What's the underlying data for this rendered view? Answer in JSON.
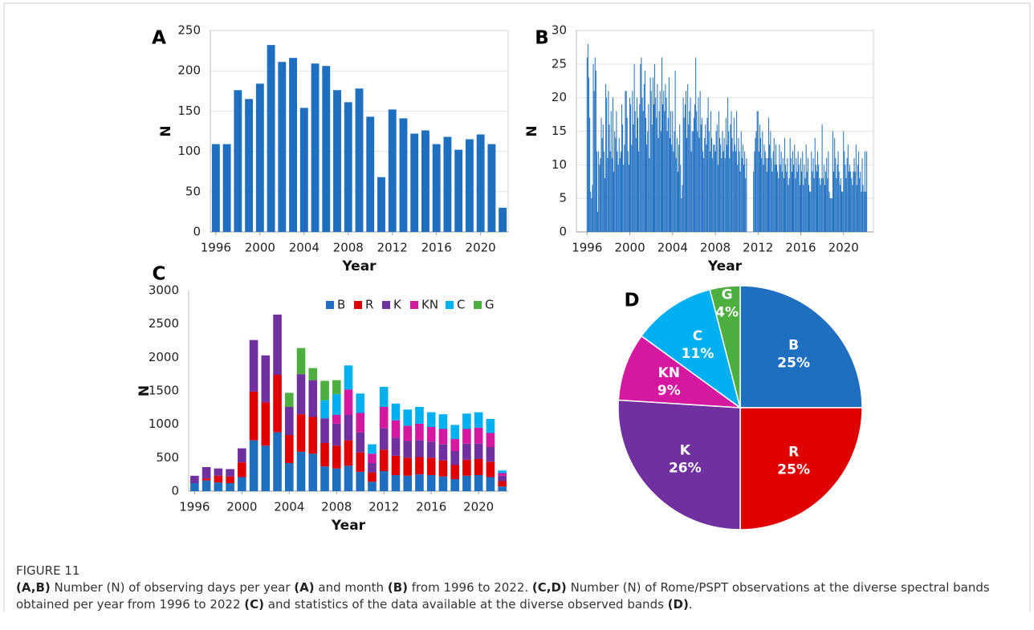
{
  "chart_data": [
    {
      "type": "bar",
      "panel": "A",
      "xlabel": "Year",
      "ylabel": "N",
      "x": [
        1996,
        1997,
        1998,
        1999,
        2000,
        2001,
        2002,
        2003,
        2004,
        2005,
        2006,
        2007,
        2008,
        2009,
        2010,
        2011,
        2012,
        2013,
        2014,
        2015,
        2016,
        2017,
        2018,
        2019,
        2020,
        2021,
        2022
      ],
      "values": [
        109,
        109,
        176,
        165,
        184,
        232,
        211,
        216,
        154,
        209,
        206,
        176,
        161,
        178,
        143,
        68,
        152,
        141,
        122,
        126,
        109,
        118,
        102,
        115,
        121,
        109,
        30
      ],
      "color": "#1f6fc1",
      "xlim": [
        1995.5,
        2022.5
      ],
      "xticks": [
        1996,
        2000,
        2004,
        2008,
        2012,
        2016,
        2020
      ],
      "ylim": [
        0,
        250
      ],
      "yticks": [
        0,
        50,
        100,
        150,
        200,
        250
      ],
      "grid": true
    },
    {
      "type": "bar",
      "panel": "B",
      "xlabel": "Year",
      "ylabel": "N",
      "x": [
        1996,
        1996.08,
        1996.17,
        1996.25,
        1996.33,
        1996.42,
        1996.5,
        1996.58,
        1996.67,
        1996.75,
        1996.83,
        1996.92,
        1997,
        1997.08,
        1997.17,
        1997.25,
        1997.33,
        1997.42,
        1997.5,
        1997.58,
        1997.67,
        1997.75,
        1997.83,
        1997.92,
        1998,
        1998.08,
        1998.17,
        1998.25,
        1998.33,
        1998.42,
        1998.5,
        1998.58,
        1998.67,
        1998.75,
        1998.83,
        1998.92,
        1999,
        1999.08,
        1999.17,
        1999.25,
        1999.33,
        1999.42,
        1999.5,
        1999.58,
        1999.67,
        1999.75,
        1999.83,
        1999.92,
        2000,
        2000.08,
        2000.17,
        2000.25,
        2000.33,
        2000.42,
        2000.5,
        2000.58,
        2000.67,
        2000.75,
        2000.83,
        2000.92,
        2001,
        2001.08,
        2001.17,
        2001.25,
        2001.33,
        2001.42,
        2001.5,
        2001.58,
        2001.67,
        2001.75,
        2001.83,
        2001.92,
        2002,
        2002.08,
        2002.17,
        2002.25,
        2002.33,
        2002.42,
        2002.5,
        2002.58,
        2002.67,
        2002.75,
        2002.83,
        2002.92,
        2003,
        2003.08,
        2003.17,
        2003.25,
        2003.33,
        2003.42,
        2003.5,
        2003.58,
        2003.67,
        2003.75,
        2003.83,
        2003.92,
        2004,
        2004.08,
        2004.17,
        2004.25,
        2004.33,
        2004.42,
        2004.5,
        2004.58,
        2004.67,
        2004.75,
        2004.83,
        2004.92,
        2005,
        2005.08,
        2005.17,
        2005.25,
        2005.33,
        2005.42,
        2005.5,
        2005.58,
        2005.67,
        2005.75,
        2005.83,
        2005.92,
        2006,
        2006.08,
        2006.17,
        2006.25,
        2006.33,
        2006.42,
        2006.5,
        2006.58,
        2006.67,
        2006.75,
        2006.83,
        2006.92,
        2007,
        2007.08,
        2007.17,
        2007.25,
        2007.33,
        2007.42,
        2007.5,
        2007.58,
        2007.67,
        2007.75,
        2007.83,
        2007.92,
        2008,
        2008.08,
        2008.17,
        2008.25,
        2008.33,
        2008.42,
        2008.5,
        2008.58,
        2008.67,
        2008.75,
        2008.83,
        2008.92,
        2009,
        2009.08,
        2009.17,
        2009.25,
        2009.33,
        2009.42,
        2009.5,
        2009.58,
        2009.67,
        2009.75,
        2009.83,
        2009.92,
        2010,
        2010.08,
        2010.17,
        2010.25,
        2010.33,
        2010.42,
        2010.5,
        2010.58,
        2010.67,
        2010.75,
        2010.83,
        2010.92,
        2011,
        2011.08,
        2011.17,
        2011.25,
        2011.33,
        2011.42,
        2011.5,
        2011.58,
        2011.67,
        2011.75,
        2011.83,
        2011.92,
        2012,
        2012.08,
        2012.17,
        2012.25,
        2012.33,
        2012.42,
        2012.5,
        2012.58,
        2012.67,
        2012.75,
        2012.83,
        2012.92,
        2013,
        2013.08,
        2013.17,
        2013.25,
        2013.33,
        2013.42,
        2013.5,
        2013.58,
        2013.67,
        2013.75,
        2013.83,
        2013.92,
        2014,
        2014.08,
        2014.17,
        2014.25,
        2014.33,
        2014.42,
        2014.5,
        2014.58,
        2014.67,
        2014.75,
        2014.83,
        2014.92,
        2015,
        2015.08,
        2015.17,
        2015.25,
        2015.33,
        2015.42,
        2015.5,
        2015.58,
        2015.67,
        2015.75,
        2015.83,
        2015.92,
        2016,
        2016.08,
        2016.17,
        2016.25,
        2016.33,
        2016.42,
        2016.5,
        2016.58,
        2016.67,
        2016.75,
        2016.83,
        2016.92,
        2017,
        2017.08,
        2017.17,
        2017.25,
        2017.33,
        2017.42,
        2017.5,
        2017.58,
        2017.67,
        2017.75,
        2017.83,
        2017.92,
        2018,
        2018.08,
        2018.17,
        2018.25,
        2018.33,
        2018.42,
        2018.5,
        2018.58,
        2018.67,
        2018.75,
        2018.83,
        2018.92,
        2019,
        2019.08,
        2019.17,
        2019.25,
        2019.33,
        2019.42,
        2019.5,
        2019.58,
        2019.67,
        2019.75,
        2019.83,
        2019.92,
        2020,
        2020.08,
        2020.17,
        2020.25,
        2020.33,
        2020.42,
        2020.5,
        2020.58,
        2020.67,
        2020.75,
        2020.83,
        2020.92,
        2021,
        2021.08,
        2021.17,
        2021.25,
        2021.33,
        2021.42,
        2021.5,
        2021.58,
        2021.67,
        2021.75,
        2021.83,
        2021.92,
        2022,
        2022.08,
        2022.17
      ],
      "values": [
        26,
        28,
        23,
        17,
        6,
        5,
        7,
        25,
        21,
        26,
        24,
        12,
        3,
        12,
        10,
        11,
        17,
        14,
        16,
        12,
        8,
        22,
        20,
        11,
        21,
        16,
        12,
        18,
        11,
        20,
        9,
        15,
        14,
        18,
        12,
        10,
        14,
        11,
        12,
        19,
        16,
        10,
        13,
        21,
        21,
        17,
        12,
        10,
        20,
        19,
        13,
        21,
        16,
        25,
        18,
        14,
        20,
        17,
        12,
        19,
        25,
        26,
        20,
        18,
        22,
        24,
        17,
        13,
        15,
        19,
        11,
        23,
        21,
        16,
        23,
        19,
        25,
        20,
        17,
        22,
        14,
        18,
        21,
        15,
        26,
        19,
        21,
        18,
        22,
        20,
        15,
        17,
        23,
        14,
        18,
        13,
        18,
        12,
        15,
        24,
        11,
        14,
        9,
        13,
        16,
        10,
        5,
        7,
        20,
        17,
        19,
        21,
        14,
        22,
        16,
        18,
        20,
        12,
        15,
        15,
        17,
        19,
        26,
        18,
        15,
        20,
        14,
        21,
        16,
        17,
        12,
        11,
        14,
        16,
        13,
        17,
        20,
        15,
        12,
        18,
        14,
        11,
        13,
        13,
        12,
        15,
        16,
        10,
        18,
        14,
        13,
        11,
        15,
        12,
        14,
        11,
        17,
        13,
        20,
        15,
        11,
        16,
        18,
        14,
        12,
        17,
        13,
        12,
        18,
        10,
        14,
        12,
        9,
        15,
        11,
        13,
        10,
        12,
        8,
        11,
        null,
        null,
        null,
        null,
        null,
        null,
        null,
        9,
        12,
        14,
        15,
        18,
        18,
        12,
        16,
        14,
        11,
        15,
        10,
        13,
        12,
        11,
        9,
        11,
        17,
        13,
        15,
        11,
        9,
        12,
        14,
        10,
        13,
        10,
        9,
        8,
        13,
        10,
        12,
        9,
        11,
        8,
        14,
        10,
        9,
        11,
        7,
        8,
        14,
        11,
        9,
        12,
        10,
        13,
        8,
        11,
        9,
        12,
        10,
        7,
        11,
        9,
        12,
        7,
        10,
        8,
        13,
        9,
        11,
        7,
        6,
        6,
        12,
        9,
        11,
        8,
        14,
        10,
        9,
        12,
        10,
        8,
        7,
        8,
        16,
        8,
        10,
        7,
        9,
        11,
        8,
        12,
        6,
        5,
        5,
        5,
        15,
        9,
        14,
        11,
        8,
        10,
        12,
        9,
        7,
        8,
        6,
        6,
        15,
        12,
        10,
        8,
        11,
        13,
        9,
        10,
        9,
        8,
        7,
        9,
        11,
        9,
        13,
        7,
        10,
        12,
        8,
        9,
        6,
        11,
        7,
        6,
        12,
        6,
        12
      ],
      "color": "#1f6fc1",
      "xlim": [
        1995,
        2022.8
      ],
      "xticks": [
        1996,
        2000,
        2004,
        2008,
        2012,
        2016,
        2020
      ],
      "ylim": [
        0,
        30
      ],
      "yticks": [
        0,
        5,
        10,
        15,
        20,
        25,
        30
      ],
      "grid": true
    },
    {
      "type": "stacked-bar",
      "panel": "C",
      "xlabel": "Year",
      "ylabel": "N",
      "legend": "upper right",
      "x": [
        1996,
        1997,
        1998,
        1999,
        2000,
        2001,
        2002,
        2003,
        2004,
        2005,
        2006,
        2007,
        2008,
        2009,
        2010,
        2011,
        2012,
        2013,
        2014,
        2015,
        2016,
        2017,
        2018,
        2019,
        2020,
        2021,
        2022
      ],
      "series": [
        {
          "name": "B",
          "color": "#1f6fc1",
          "values": [
            120,
            160,
            130,
            120,
            210,
            760,
            680,
            880,
            420,
            590,
            560,
            370,
            340,
            380,
            290,
            140,
            300,
            240,
            230,
            250,
            240,
            220,
            180,
            230,
            240,
            210,
            70
          ]
        },
        {
          "name": "R",
          "color": "#e00000",
          "values": [
            0,
            30,
            100,
            100,
            220,
            730,
            650,
            860,
            420,
            560,
            550,
            350,
            340,
            380,
            290,
            140,
            320,
            290,
            270,
            260,
            260,
            240,
            210,
            240,
            240,
            230,
            80
          ]
        },
        {
          "name": "K",
          "color": "#7030a0",
          "values": [
            110,
            170,
            110,
            110,
            210,
            770,
            700,
            900,
            420,
            600,
            550,
            370,
            330,
            380,
            300,
            140,
            320,
            270,
            250,
            250,
            240,
            240,
            210,
            240,
            230,
            220,
            80
          ]
        },
        {
          "name": "KN",
          "color": "#d6179f",
          "values": [
            0,
            0,
            0,
            0,
            0,
            0,
            0,
            0,
            0,
            0,
            0,
            0,
            130,
            380,
            290,
            140,
            320,
            260,
            230,
            250,
            220,
            230,
            180,
            220,
            240,
            210,
            40
          ]
        },
        {
          "name": "C",
          "color": "#00b0f0",
          "values": [
            0,
            0,
            0,
            0,
            0,
            0,
            0,
            0,
            0,
            0,
            0,
            270,
            310,
            360,
            290,
            140,
            300,
            250,
            240,
            250,
            220,
            220,
            210,
            230,
            230,
            210,
            40
          ]
        },
        {
          "name": "G",
          "color": "#4caf40",
          "values": [
            0,
            0,
            0,
            0,
            0,
            0,
            0,
            0,
            210,
            390,
            180,
            290,
            210,
            0,
            0,
            0,
            0,
            0,
            0,
            0,
            0,
            0,
            0,
            0,
            0,
            0,
            0
          ]
        }
      ],
      "xlim": [
        1995.5,
        2022.5
      ],
      "xticks": [
        1996,
        2000,
        2004,
        2008,
        2012,
        2016,
        2020
      ],
      "ylim": [
        0,
        3000
      ],
      "yticks": [
        0,
        500,
        1000,
        1500,
        2000,
        2500,
        3000
      ],
      "grid": false
    },
    {
      "type": "pie",
      "panel": "D",
      "categories": [
        "B",
        "R",
        "K",
        "KN",
        "C",
        "G"
      ],
      "values": [
        25,
        25,
        26,
        9,
        11,
        4
      ],
      "value_labels": [
        "25%",
        "25%",
        "26%",
        "9%",
        "11%",
        "4%"
      ],
      "colors": [
        "#1f6fc1",
        "#e00000",
        "#7030a0",
        "#d6179f",
        "#00b0f0",
        "#4caf40"
      ]
    }
  ],
  "figure": {
    "label": "FIGURE 11",
    "caption": [
      {
        "text": "(A,B)",
        "bold": true
      },
      {
        "text": " Number (N) of observing days per year ",
        "bold": false
      },
      {
        "text": "(A)",
        "bold": true
      },
      {
        "text": " and month ",
        "bold": false
      },
      {
        "text": "(B)",
        "bold": true
      },
      {
        "text": " from 1996 to 2022. ",
        "bold": false
      },
      {
        "text": "(C,D)",
        "bold": true
      },
      {
        "text": " Number (N) of Rome/PSPT observations at the diverse spectral bands obtained per year from 1996 to 2022 ",
        "bold": false
      },
      {
        "text": "(C)",
        "bold": true
      },
      {
        "text": " and statistics of the data available at the diverse observed bands ",
        "bold": false
      },
      {
        "text": "(D)",
        "bold": true
      },
      {
        "text": ".",
        "bold": false
      }
    ]
  }
}
